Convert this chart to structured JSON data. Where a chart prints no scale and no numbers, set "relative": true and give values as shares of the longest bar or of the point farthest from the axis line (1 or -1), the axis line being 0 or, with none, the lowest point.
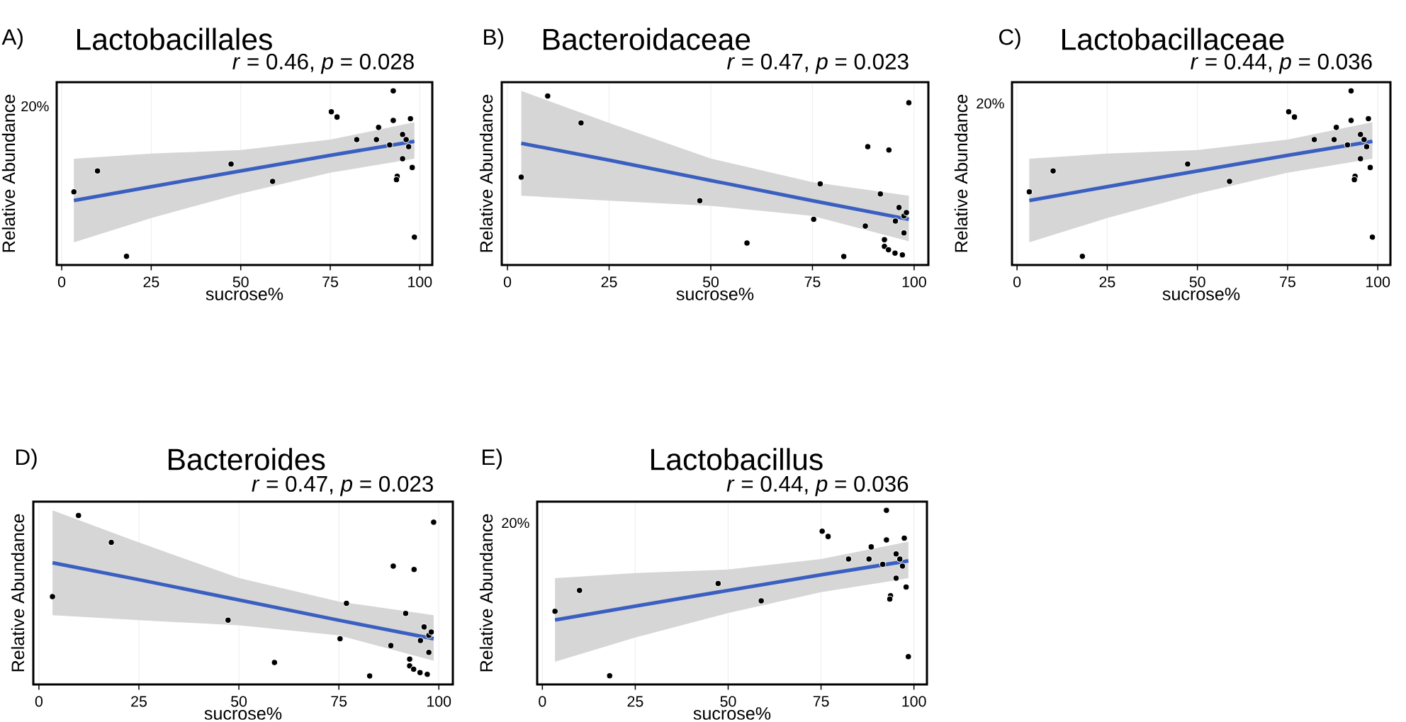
{
  "chart_data": [
    {
      "type": "scatter",
      "title": "Lactobacillales",
      "subtitle": "*r* = 0.46, *p* = 0.028",
      "xlabel": "sucrose%",
      "ylabel": "Relative Abundance",
      "annotations": [
        "A)",
        "20%"
      ],
      "relative": true,
      "xlim": [
        -1.4,
        103.5
      ],
      "xticks": [
        0,
        25,
        50,
        75,
        100
      ],
      "tick_labels": "x",
      "grid": "x",
      "series": [
        {
          "type": "line",
          "color": "#3a5fc0",
          "x": [
            3.4,
            25,
            50,
            75,
            98.5
          ],
          "values": [
            0.37,
            0.45,
            0.54,
            0.63,
            0.71
          ],
          "lower": [
            0.13,
            0.27,
            0.41,
            0.53,
            0.61
          ],
          "upper": [
            0.61,
            0.64,
            0.66,
            0.72,
            0.82
          ]
        },
        {
          "type": "scatter",
          "color": "#000000",
          "marker": "circle",
          "x": [
            3.4,
            10.0,
            18.1,
            47.3,
            58.9,
            75.3,
            76.9,
            82.4,
            87.9,
            88.5,
            91.6,
            92.6,
            92.6,
            93.7,
            93.5,
            95.2,
            95.2,
            96.2,
            96.9,
            97.4,
            97.9,
            98.5
          ],
          "values": [
            0.42,
            0.54,
            0.05,
            0.58,
            0.48,
            0.88,
            0.85,
            0.72,
            0.72,
            0.79,
            0.69,
            1.0,
            0.83,
            0.51,
            0.49,
            0.75,
            0.61,
            0.72,
            0.68,
            0.84,
            0.56,
            0.16
          ]
        }
      ]
    },
    {
      "type": "scatter",
      "title": "Bacteroidaceae",
      "subtitle": "*r* = 0.47, *p* = 0.023",
      "xlabel": "sucrose%",
      "ylabel": "Relative Abundance",
      "annotations": [
        "B)"
      ],
      "relative": true,
      "xlim": [
        -1.4,
        103.5
      ],
      "xticks": [
        0,
        25,
        50,
        75,
        100
      ],
      "tick_labels": "x",
      "grid": "x",
      "series": [
        {
          "type": "line",
          "color": "#3a5fc0",
          "x": [
            3.4,
            25,
            50,
            75,
            98.7
          ],
          "values": [
            0.72,
            0.62,
            0.5,
            0.38,
            0.27
          ],
          "lower": [
            0.41,
            0.38,
            0.35,
            0.29,
            0.14
          ],
          "upper": [
            1.03,
            0.84,
            0.63,
            0.49,
            0.41
          ]
        },
        {
          "type": "scatter",
          "color": "#000000",
          "marker": "circle",
          "x": [
            3.4,
            9.9,
            18.1,
            47.3,
            58.9,
            75.3,
            76.9,
            82.7,
            88.0,
            88.6,
            91.7,
            92.7,
            92.7,
            93.7,
            93.8,
            95.3,
            95.4,
            96.3,
            97.1,
            97.5,
            97.5,
            98.1,
            98.7
          ],
          "values": [
            0.52,
            1.0,
            0.84,
            0.38,
            0.13,
            0.27,
            0.48,
            0.05,
            0.23,
            0.7,
            0.42,
            0.15,
            0.11,
            0.09,
            0.68,
            0.07,
            0.26,
            0.34,
            0.06,
            0.29,
            0.19,
            0.31,
            0.96
          ]
        }
      ]
    },
    {
      "type": "scatter",
      "title": "Lactobacillaceae",
      "subtitle": "*r* = 0.44, *p* = 0.036",
      "xlabel": "sucrose%",
      "ylabel": "Relative Abundance",
      "annotations": [
        "C)",
        "20%"
      ],
      "relative": true,
      "xlim": [
        -1.4,
        103.5
      ],
      "xticks": [
        0,
        25,
        50,
        75,
        100
      ],
      "tick_labels": "x",
      "grid": "x",
      "series": [
        {
          "type": "line",
          "color": "#3a5fc0",
          "x": [
            3.4,
            25,
            50,
            75,
            98.5
          ],
          "values": [
            0.37,
            0.45,
            0.54,
            0.63,
            0.71
          ],
          "lower": [
            0.13,
            0.27,
            0.41,
            0.53,
            0.61
          ],
          "upper": [
            0.61,
            0.64,
            0.66,
            0.72,
            0.82
          ]
        },
        {
          "type": "scatter",
          "color": "#000000",
          "marker": "circle",
          "x": [
            3.4,
            10.0,
            18.1,
            47.3,
            58.9,
            75.3,
            76.9,
            82.4,
            87.9,
            88.5,
            91.6,
            92.6,
            92.6,
            93.7,
            93.5,
            95.2,
            95.2,
            96.2,
            96.9,
            97.4,
            97.9,
            98.5
          ],
          "values": [
            0.42,
            0.54,
            0.05,
            0.58,
            0.48,
            0.88,
            0.85,
            0.72,
            0.72,
            0.79,
            0.69,
            1.0,
            0.83,
            0.51,
            0.49,
            0.75,
            0.61,
            0.72,
            0.68,
            0.84,
            0.56,
            0.16
          ]
        }
      ]
    },
    {
      "type": "scatter",
      "title": "Bacteroides",
      "subtitle": "*r* = 0.47, *p* = 0.023",
      "xlabel": "sucrose%",
      "ylabel": "Relative Abundance",
      "annotations": [
        "D)"
      ],
      "relative": true,
      "xlim": [
        -1.4,
        103.5
      ],
      "xticks": [
        0,
        25,
        50,
        75,
        100
      ],
      "tick_labels": "x",
      "grid": "x",
      "series": [
        {
          "type": "line",
          "color": "#3a5fc0",
          "x": [
            3.4,
            25,
            50,
            75,
            98.7
          ],
          "values": [
            0.72,
            0.62,
            0.5,
            0.38,
            0.27
          ],
          "lower": [
            0.41,
            0.38,
            0.35,
            0.29,
            0.14
          ],
          "upper": [
            1.03,
            0.84,
            0.63,
            0.49,
            0.41
          ]
        },
        {
          "type": "scatter",
          "color": "#000000",
          "marker": "circle",
          "x": [
            3.4,
            9.9,
            18.1,
            47.3,
            58.9,
            75.3,
            76.9,
            82.7,
            88.0,
            88.6,
            91.7,
            92.7,
            92.7,
            93.7,
            93.8,
            95.3,
            95.4,
            96.3,
            97.1,
            97.5,
            97.5,
            98.1,
            98.7
          ],
          "values": [
            0.52,
            1.0,
            0.84,
            0.38,
            0.13,
            0.27,
            0.48,
            0.05,
            0.23,
            0.7,
            0.42,
            0.15,
            0.11,
            0.09,
            0.68,
            0.07,
            0.26,
            0.34,
            0.06,
            0.29,
            0.19,
            0.31,
            0.96
          ]
        }
      ]
    },
    {
      "type": "scatter",
      "title": "Lactobacillus",
      "subtitle": "*r* = 0.44, *p* = 0.036",
      "xlabel": "sucrose%",
      "ylabel": "Relative Abundance",
      "annotations": [
        "E)",
        "20%"
      ],
      "relative": true,
      "xlim": [
        -1.4,
        103.5
      ],
      "xticks": [
        0,
        25,
        50,
        75,
        100
      ],
      "tick_labels": "x",
      "grid": "x",
      "series": [
        {
          "type": "line",
          "color": "#3a5fc0",
          "x": [
            3.4,
            25,
            50,
            75,
            98.5
          ],
          "values": [
            0.37,
            0.45,
            0.54,
            0.63,
            0.71
          ],
          "lower": [
            0.13,
            0.27,
            0.41,
            0.53,
            0.61
          ],
          "upper": [
            0.61,
            0.64,
            0.66,
            0.72,
            0.82
          ]
        },
        {
          "type": "scatter",
          "color": "#000000",
          "marker": "circle",
          "x": [
            3.4,
            10.0,
            18.1,
            47.3,
            58.9,
            75.3,
            76.9,
            82.4,
            87.9,
            88.5,
            91.6,
            92.6,
            92.6,
            93.7,
            93.5,
            95.2,
            95.2,
            96.2,
            96.9,
            97.4,
            97.9,
            98.5
          ],
          "values": [
            0.42,
            0.54,
            0.05,
            0.58,
            0.48,
            0.88,
            0.85,
            0.72,
            0.72,
            0.79,
            0.69,
            1.0,
            0.83,
            0.51,
            0.49,
            0.75,
            0.61,
            0.72,
            0.68,
            0.84,
            0.56,
            0.16
          ]
        }
      ]
    }
  ]
}
